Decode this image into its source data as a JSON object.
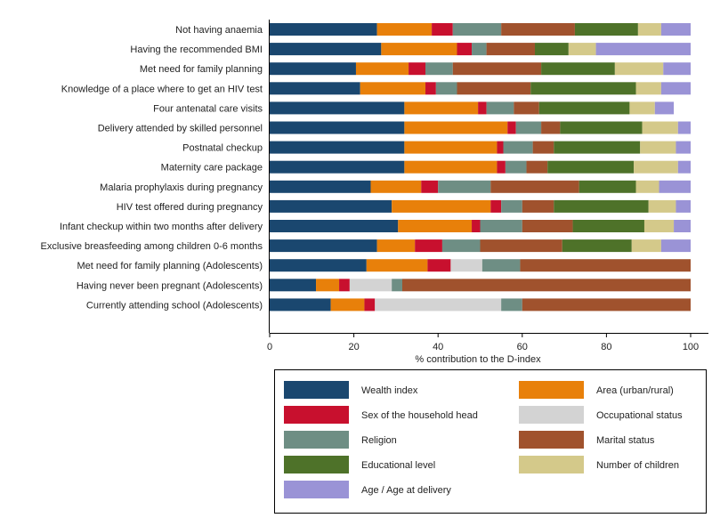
{
  "chart_data": {
    "type": "bar",
    "orientation": "horizontal",
    "stacked": true,
    "xlabel": "% contribution to the D-index",
    "xlim": [
      0,
      100
    ],
    "xticks": [
      0,
      20,
      40,
      60,
      80,
      100
    ],
    "legend_position": "bottom",
    "categories": [
      "Not having anaemia",
      "Having the recommended BMI",
      "Met need for family planning",
      "Knowledge of a place where to get an HIV test",
      "Four antenatal care visits",
      "Delivery attended by skilled personnel",
      "Postnatal checkup",
      "Maternity care package",
      "Malaria prophylaxis during pregnancy",
      "HIV test offered during pregnancy",
      "Infant checkup within two months after delivery",
      "Exclusive breasfeeding among children 0-6 months",
      "Met need for family planning (Adolescents)",
      "Having never been pregnant (Adolescents)",
      "Currently attending school (Adolescents)"
    ],
    "series": [
      {
        "name": "Wealth index",
        "color": "#1a476f",
        "values": [
          25.5,
          26.5,
          20.5,
          21.5,
          32,
          32,
          32,
          32,
          24,
          29,
          30.5,
          25.5,
          23,
          11,
          14.5
        ]
      },
      {
        "name": "Area (urban/rural)",
        "color": "#e8800a",
        "values": [
          13,
          18,
          12.5,
          15.5,
          17.5,
          24.5,
          22,
          22,
          12,
          23.5,
          17.5,
          9,
          14.5,
          5.5,
          8
        ]
      },
      {
        "name": "Sex of the household head",
        "color": "#c8102e",
        "values": [
          5,
          3.5,
          4,
          2.5,
          2,
          2,
          1.5,
          2,
          4,
          2.5,
          2,
          6.5,
          5.5,
          2.5,
          2.5
        ]
      },
      {
        "name": "Occupational status",
        "color": "#d3d3d3",
        "values": [
          0,
          0,
          0,
          0,
          0,
          0,
          0,
          0,
          0,
          0,
          0,
          0,
          7.5,
          10,
          30
        ]
      },
      {
        "name": "Religion",
        "color": "#6e8e84",
        "values": [
          11.5,
          3.5,
          6.5,
          5,
          6.5,
          6,
          7,
          5,
          12.5,
          5,
          10,
          9,
          9,
          2.5,
          5
        ]
      },
      {
        "name": "Marital status",
        "color": "#a0522d",
        "values": [
          17.5,
          11.5,
          21,
          17.5,
          6,
          4.5,
          5,
          5,
          21,
          7.5,
          12,
          19.5,
          40.5,
          68.5,
          40
        ]
      },
      {
        "name": "Educational level",
        "color": "#4e7229",
        "values": [
          15,
          8,
          17.5,
          25,
          21.5,
          19.5,
          20.5,
          20.5,
          13.5,
          22.5,
          17,
          16.5,
          0,
          0,
          0
        ]
      },
      {
        "name": "Number of children",
        "color": "#d4c98a",
        "values": [
          5.5,
          6.5,
          11.5,
          6,
          6,
          8.5,
          8.5,
          10.5,
          5.5,
          6.5,
          7,
          7,
          0,
          0,
          0
        ]
      },
      {
        "name": "Age / Age at delivery",
        "color": "#9a93d6",
        "values": [
          7,
          22.5,
          6.5,
          7,
          4.5,
          3,
          3.5,
          3,
          7.5,
          3.5,
          4,
          7,
          0,
          0,
          0
        ]
      }
    ],
    "legend_order": [
      "Wealth index",
      "Area (urban/rural)",
      "Sex of the household head",
      "Occupational status",
      "Religion",
      "Marital status",
      "Educational level",
      "Number of children",
      "Age / Age at delivery"
    ]
  }
}
